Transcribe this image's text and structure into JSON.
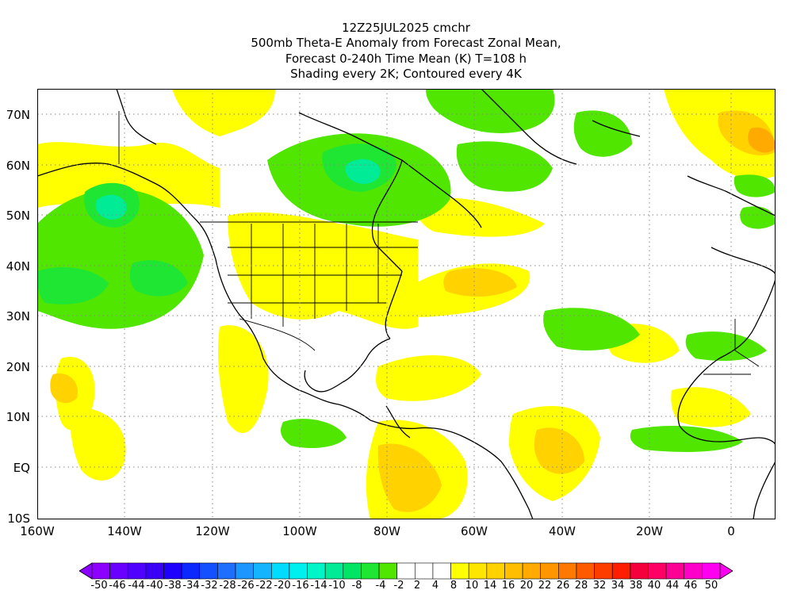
{
  "title": {
    "line1": "12Z25JUL2025 cmchr",
    "line2": "500mb Theta-E Anomaly from Forecast Zonal Mean,",
    "line3": "Forecast 0-240h Time Mean (K) T=108 h",
    "line4": "Shading every 2K; Contoured every 4K"
  },
  "axes": {
    "lat_labels": [
      "70N",
      "60N",
      "50N",
      "40N",
      "30N",
      "20N",
      "10N",
      "EQ",
      "10S"
    ],
    "lon_labels": [
      "160W",
      "140W",
      "120W",
      "100W",
      "80W",
      "60W",
      "40W",
      "20W",
      "0"
    ]
  },
  "colorbar": {
    "labels": [
      "-50",
      "-46",
      "-44",
      "-40",
      "-38",
      "-34",
      "-32",
      "-28",
      "-26",
      "-22",
      "-20",
      "-16",
      "-14",
      "-10",
      "-8",
      "-4",
      "-2",
      "2",
      "4",
      "8",
      "10",
      "14",
      "16",
      "20",
      "22",
      "26",
      "28",
      "32",
      "34",
      "38",
      "40",
      "44",
      "46",
      "50"
    ],
    "colors": [
      "#8c00ff",
      "#6a00ff",
      "#5000ff",
      "#3a00f5",
      "#1e00ff",
      "#0a28ff",
      "#1450ff",
      "#1e6eff",
      "#1e96ff",
      "#14b4ff",
      "#00dcff",
      "#00f0f0",
      "#00f5c8",
      "#00eb96",
      "#00e664",
      "#1ee632",
      "#50e600",
      "#ffffff",
      "#ffffff",
      "#ffffff",
      "#ffff00",
      "#ffe600",
      "#ffd200",
      "#ffbe00",
      "#ffaa00",
      "#ff9600",
      "#ff7800",
      "#ff5a00",
      "#ff3c00",
      "#ff1e00",
      "#f5003c",
      "#ff0064",
      "#ff0096",
      "#ff00c8",
      "#ff00f0"
    ],
    "left_triangle_color": "#8c00ff",
    "right_triangle_color": "#ff00f0"
  },
  "colors": {
    "green": "#50e600",
    "light_green": "#1ee632",
    "cyan_green": "#00eb96",
    "yellow": "#ffff00",
    "gold": "#ffd200",
    "orange": "#ffaa00"
  }
}
